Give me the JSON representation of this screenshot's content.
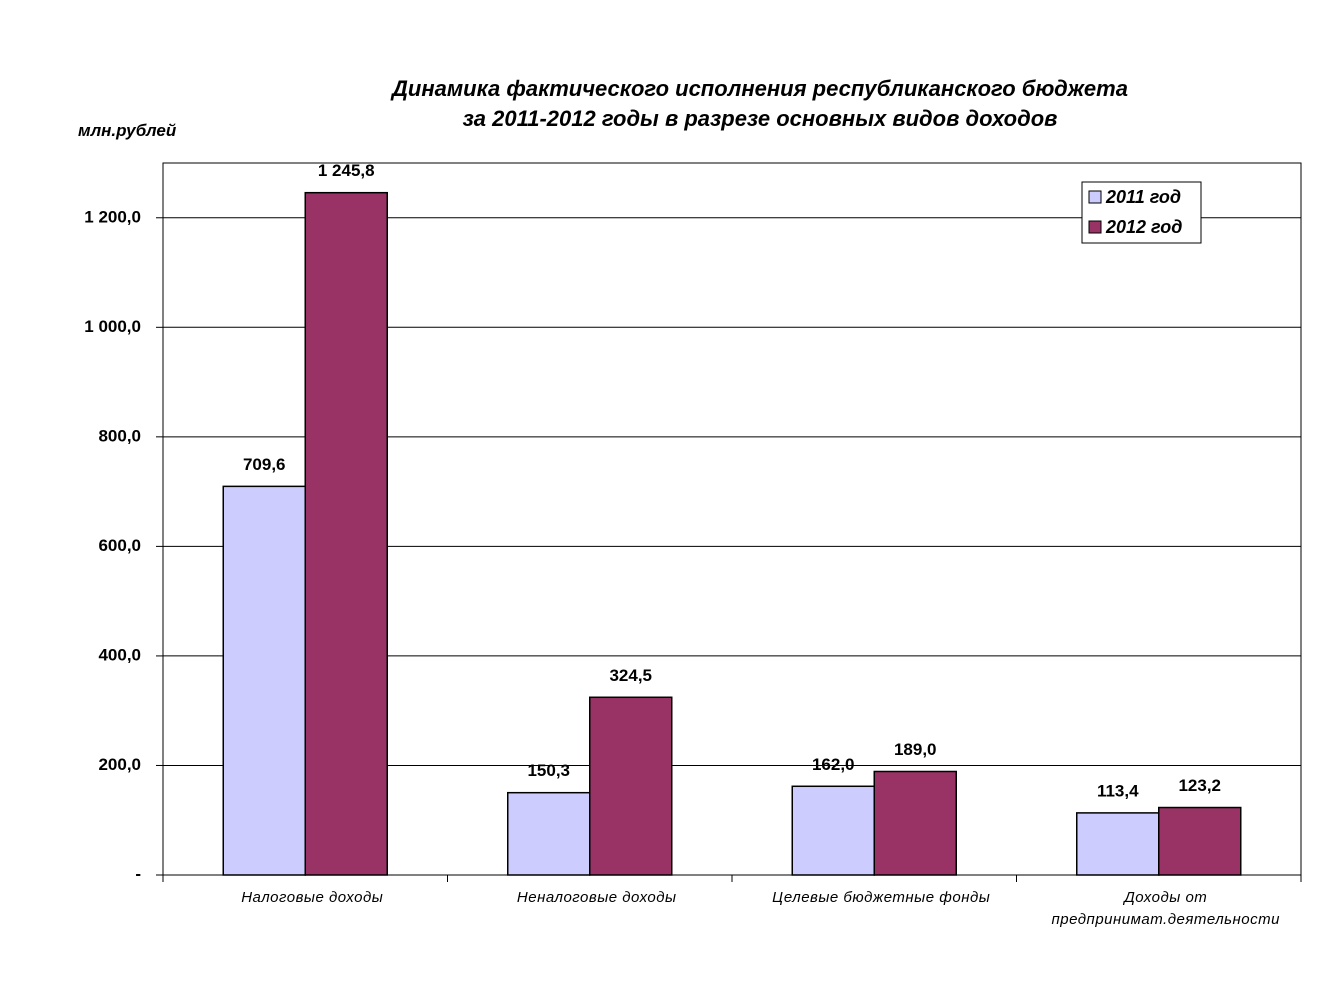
{
  "chart_data": {
    "type": "bar",
    "title": "Динамика фактического исполнения республиканского бюджета\nза 2011-2012 годы в разрезе основных видов доходов",
    "y_label": "млн.рублей",
    "categories": [
      "Налоговые доходы",
      "Неналоговые доходы",
      "Целевые бюджетные фонды",
      "Доходы от предпринимат.деятельности"
    ],
    "series": [
      {
        "name": "2011 год",
        "color": "#ccccff",
        "values": [
          709.6,
          150.3,
          162.0,
          113.4
        ],
        "value_labels": [
          "709,6",
          "150,3",
          "162,0",
          "113,4"
        ]
      },
      {
        "name": "2012 год",
        "color": "#993366",
        "values": [
          1245.8,
          324.5,
          189.0,
          123.2
        ],
        "value_labels": [
          "1 245,8",
          "324,5",
          "189,0",
          "123,2"
        ]
      }
    ],
    "ylim": [
      0,
      1300
    ],
    "yticks": [
      {
        "value": 0,
        "label": "-"
      },
      {
        "value": 200,
        "label": "200,0"
      },
      {
        "value": 400,
        "label": "400,0"
      },
      {
        "value": 600,
        "label": "600,0"
      },
      {
        "value": 800,
        "label": "800,0"
      },
      {
        "value": 1000,
        "label": "1 000,0"
      },
      {
        "value": 1200,
        "label": "1 200,0"
      }
    ],
    "grid": true,
    "legend": "upper right"
  }
}
